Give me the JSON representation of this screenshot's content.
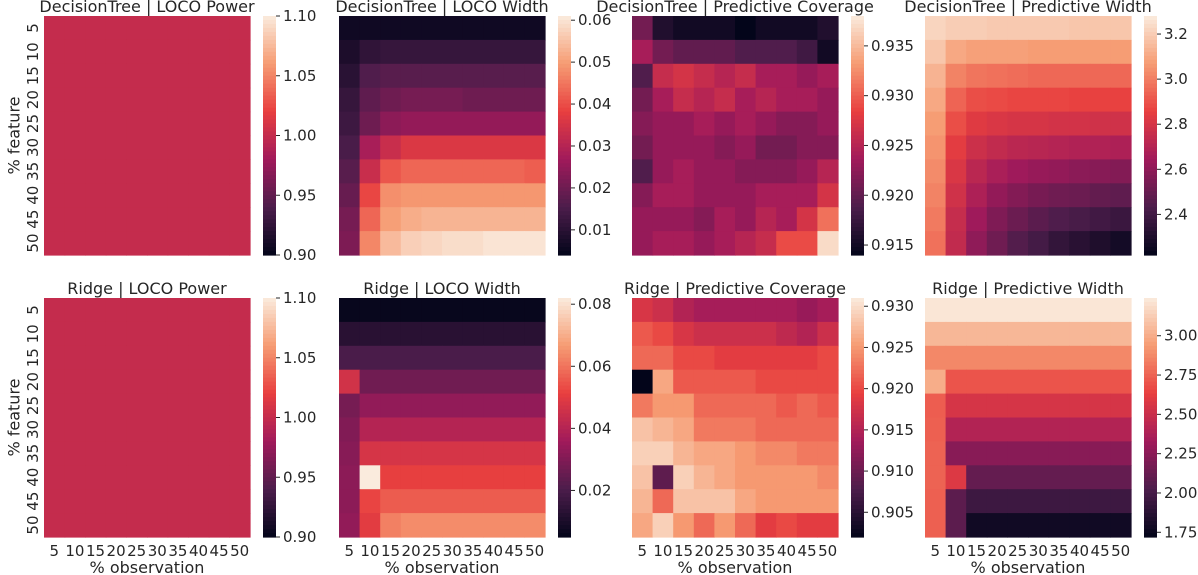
{
  "colormap": {
    "name": "rocket",
    "stops": [
      "#03051a",
      "#4c1d4b",
      "#a11a5b",
      "#e83f3f",
      "#f69c73",
      "#faebdd"
    ]
  },
  "shared_axes": {
    "xlabel": "% observation",
    "ylabel": "% feature",
    "categories": [
      "5",
      "10",
      "15",
      "20",
      "25",
      "30",
      "35",
      "40",
      "45",
      "50"
    ]
  },
  "chart_data": [
    {
      "type": "heatmap",
      "title": "DecisionTree | LOCO Power",
      "xlabel": "",
      "ylabel": "% feature",
      "x": [
        "5",
        "10",
        "15",
        "20",
        "25",
        "30",
        "35",
        "40",
        "45",
        "50"
      ],
      "y": [
        "5",
        "10",
        "15",
        "20",
        "25",
        "30",
        "35",
        "40",
        "45",
        "50"
      ],
      "vmin": 0.9,
      "vmax": 1.1,
      "colorbar_ticks": [
        "0.90",
        "0.95",
        "1.00",
        "1.05",
        "1.10"
      ],
      "constant_value": 1.0
    },
    {
      "type": "heatmap",
      "title": "DecisionTree | LOCO Width",
      "xlabel": "",
      "ylabel": "",
      "x": [
        "5",
        "10",
        "15",
        "20",
        "25",
        "30",
        "35",
        "40",
        "45",
        "50"
      ],
      "y": [
        "5",
        "10",
        "15",
        "20",
        "25",
        "30",
        "35",
        "40",
        "45",
        "50"
      ],
      "vmin": 0.004,
      "vmax": 0.061,
      "colorbar_ticks": [
        "0.01",
        "0.02",
        "0.03",
        "0.04",
        "0.05",
        "0.06"
      ],
      "values": [
        [
          0.006,
          0.006,
          0.006,
          0.006,
          0.006,
          0.006,
          0.006,
          0.006,
          0.006,
          0.006
        ],
        [
          0.008,
          0.011,
          0.012,
          0.012,
          0.012,
          0.012,
          0.012,
          0.012,
          0.012,
          0.012
        ],
        [
          0.01,
          0.016,
          0.017,
          0.017,
          0.017,
          0.017,
          0.017,
          0.017,
          0.017,
          0.017
        ],
        [
          0.012,
          0.018,
          0.02,
          0.021,
          0.021,
          0.021,
          0.02,
          0.02,
          0.02,
          0.02
        ],
        [
          0.013,
          0.02,
          0.024,
          0.025,
          0.025,
          0.025,
          0.025,
          0.025,
          0.025,
          0.025
        ],
        [
          0.015,
          0.028,
          0.033,
          0.036,
          0.036,
          0.036,
          0.036,
          0.036,
          0.036,
          0.036
        ],
        [
          0.017,
          0.033,
          0.041,
          0.043,
          0.043,
          0.043,
          0.043,
          0.043,
          0.043,
          0.042
        ],
        [
          0.019,
          0.039,
          0.048,
          0.049,
          0.049,
          0.049,
          0.049,
          0.049,
          0.049,
          0.049
        ],
        [
          0.021,
          0.043,
          0.05,
          0.052,
          0.053,
          0.053,
          0.053,
          0.053,
          0.053,
          0.053
        ],
        [
          0.022,
          0.047,
          0.054,
          0.057,
          0.058,
          0.059,
          0.059,
          0.06,
          0.06,
          0.06
        ]
      ]
    },
    {
      "type": "heatmap",
      "title": "DecisionTree | Predictive Coverage",
      "xlabel": "",
      "ylabel": "",
      "x": [
        "5",
        "10",
        "15",
        "20",
        "25",
        "30",
        "35",
        "40",
        "45",
        "50"
      ],
      "y": [
        "5",
        "10",
        "15",
        "20",
        "25",
        "30",
        "35",
        "40",
        "45",
        "50"
      ],
      "vmin": 0.914,
      "vmax": 0.938,
      "colorbar_ticks": [
        "0.915",
        "0.920",
        "0.925",
        "0.930",
        "0.935"
      ],
      "values": [
        [
          0.921,
          0.916,
          0.915,
          0.915,
          0.915,
          0.914,
          0.915,
          0.915,
          0.915,
          0.916
        ],
        [
          0.924,
          0.921,
          0.92,
          0.92,
          0.92,
          0.919,
          0.919,
          0.919,
          0.918,
          0.915
        ],
        [
          0.919,
          0.926,
          0.927,
          0.926,
          0.925,
          0.926,
          0.924,
          0.924,
          0.923,
          0.924
        ],
        [
          0.921,
          0.924,
          0.926,
          0.925,
          0.926,
          0.924,
          0.925,
          0.924,
          0.924,
          0.923
        ],
        [
          0.922,
          0.923,
          0.923,
          0.924,
          0.923,
          0.924,
          0.923,
          0.922,
          0.922,
          0.923
        ],
        [
          0.921,
          0.923,
          0.923,
          0.923,
          0.922,
          0.923,
          0.921,
          0.921,
          0.922,
          0.922
        ],
        [
          0.919,
          0.923,
          0.924,
          0.923,
          0.923,
          0.922,
          0.922,
          0.922,
          0.923,
          0.925
        ],
        [
          0.922,
          0.924,
          0.924,
          0.923,
          0.923,
          0.923,
          0.924,
          0.924,
          0.924,
          0.927
        ],
        [
          0.923,
          0.923,
          0.923,
          0.922,
          0.924,
          0.923,
          0.925,
          0.924,
          0.927,
          0.931
        ],
        [
          0.923,
          0.924,
          0.924,
          0.923,
          0.924,
          0.925,
          0.926,
          0.929,
          0.929,
          0.937
        ]
      ]
    },
    {
      "type": "heatmap",
      "title": "DecisionTree | Predictive Width",
      "xlabel": "",
      "ylabel": "",
      "x": [
        "5",
        "10",
        "15",
        "20",
        "25",
        "30",
        "35",
        "40",
        "45",
        "50"
      ],
      "y": [
        "5",
        "10",
        "15",
        "20",
        "25",
        "30",
        "35",
        "40",
        "45",
        "50"
      ],
      "vmin": 2.22,
      "vmax": 3.28,
      "colorbar_ticks": [
        "2.4",
        "2.6",
        "2.8",
        "3.0",
        "3.2"
      ],
      "values": [
        [
          3.22,
          3.2,
          3.2,
          3.19,
          3.19,
          3.19,
          3.19,
          3.18,
          3.18,
          3.18
        ],
        [
          3.18,
          3.1,
          3.08,
          3.08,
          3.08,
          3.07,
          3.07,
          3.07,
          3.07,
          3.07
        ],
        [
          3.13,
          3.01,
          2.98,
          2.97,
          2.96,
          2.95,
          2.95,
          2.95,
          2.95,
          2.95
        ],
        [
          3.1,
          2.94,
          2.89,
          2.88,
          2.87,
          2.87,
          2.87,
          2.86,
          2.86,
          2.86
        ],
        [
          3.07,
          2.89,
          2.83,
          2.81,
          2.8,
          2.8,
          2.79,
          2.79,
          2.78,
          2.78
        ],
        [
          3.05,
          2.84,
          2.77,
          2.74,
          2.72,
          2.71,
          2.7,
          2.69,
          2.69,
          2.68
        ],
        [
          3.03,
          2.81,
          2.72,
          2.67,
          2.64,
          2.62,
          2.61,
          2.59,
          2.58,
          2.57
        ],
        [
          3.01,
          2.78,
          2.68,
          2.61,
          2.57,
          2.54,
          2.52,
          2.51,
          2.49,
          2.48
        ],
        [
          2.99,
          2.75,
          2.64,
          2.56,
          2.51,
          2.47,
          2.44,
          2.42,
          2.4,
          2.38
        ],
        [
          2.97,
          2.74,
          2.6,
          2.52,
          2.45,
          2.41,
          2.36,
          2.33,
          2.3,
          2.27
        ]
      ]
    },
    {
      "type": "heatmap",
      "title": "Ridge | LOCO Power",
      "xlabel": "% observation",
      "ylabel": "% feature",
      "x": [
        "5",
        "10",
        "15",
        "20",
        "25",
        "30",
        "35",
        "40",
        "45",
        "50"
      ],
      "y": [
        "5",
        "10",
        "15",
        "20",
        "25",
        "30",
        "35",
        "40",
        "45",
        "50"
      ],
      "vmin": 0.9,
      "vmax": 1.1,
      "colorbar_ticks": [
        "0.90",
        "0.95",
        "1.00",
        "1.05",
        "1.10"
      ],
      "constant_value": 1.0
    },
    {
      "type": "heatmap",
      "title": "Ridge | LOCO Width",
      "xlabel": "% observation",
      "ylabel": "",
      "x": [
        "5",
        "10",
        "15",
        "20",
        "25",
        "30",
        "35",
        "40",
        "45",
        "50"
      ],
      "y": [
        "5",
        "10",
        "15",
        "20",
        "25",
        "30",
        "35",
        "40",
        "45",
        "50"
      ],
      "vmin": 0.005,
      "vmax": 0.082,
      "colorbar_ticks": [
        "0.02",
        "0.04",
        "0.06",
        "0.08"
      ],
      "values": [
        [
          0.006,
          0.006,
          0.006,
          0.006,
          0.006,
          0.006,
          0.006,
          0.006,
          0.006,
          0.006
        ],
        [
          0.013,
          0.013,
          0.013,
          0.013,
          0.013,
          0.013,
          0.013,
          0.013,
          0.013,
          0.013
        ],
        [
          0.02,
          0.02,
          0.02,
          0.02,
          0.02,
          0.02,
          0.02,
          0.02,
          0.02,
          0.02
        ],
        [
          0.046,
          0.027,
          0.027,
          0.027,
          0.027,
          0.027,
          0.027,
          0.027,
          0.027,
          0.027
        ],
        [
          0.028,
          0.033,
          0.033,
          0.033,
          0.033,
          0.033,
          0.033,
          0.033,
          0.033,
          0.033
        ],
        [
          0.03,
          0.04,
          0.04,
          0.04,
          0.04,
          0.04,
          0.04,
          0.04,
          0.04,
          0.04
        ],
        [
          0.031,
          0.047,
          0.047,
          0.047,
          0.047,
          0.047,
          0.047,
          0.047,
          0.047,
          0.047
        ],
        [
          0.032,
          0.082,
          0.051,
          0.051,
          0.051,
          0.051,
          0.051,
          0.051,
          0.051,
          0.051
        ],
        [
          0.032,
          0.052,
          0.056,
          0.056,
          0.056,
          0.056,
          0.056,
          0.056,
          0.056,
          0.056
        ],
        [
          0.033,
          0.05,
          0.062,
          0.064,
          0.064,
          0.064,
          0.064,
          0.064,
          0.064,
          0.064
        ]
      ]
    },
    {
      "type": "heatmap",
      "title": "Ridge | Predictive Coverage",
      "xlabel": "% observation",
      "ylabel": "",
      "x": [
        "5",
        "10",
        "15",
        "20",
        "25",
        "30",
        "35",
        "40",
        "45",
        "50"
      ],
      "y": [
        "5",
        "10",
        "15",
        "20",
        "25",
        "30",
        "35",
        "40",
        "45",
        "50"
      ],
      "vmin": 0.902,
      "vmax": 0.931,
      "colorbar_ticks": [
        "0.905",
        "0.910",
        "0.915",
        "0.920",
        "0.925",
        "0.930"
      ],
      "values": [
        [
          0.918,
          0.917,
          0.915,
          0.914,
          0.914,
          0.914,
          0.914,
          0.914,
          0.913,
          0.914
        ],
        [
          0.921,
          0.92,
          0.918,
          0.917,
          0.917,
          0.917,
          0.917,
          0.916,
          0.915,
          0.917
        ],
        [
          0.922,
          0.922,
          0.92,
          0.92,
          0.919,
          0.919,
          0.919,
          0.919,
          0.919,
          0.92
        ],
        [
          0.902,
          0.926,
          0.921,
          0.921,
          0.921,
          0.921,
          0.92,
          0.92,
          0.92,
          0.92
        ],
        [
          0.923,
          0.925,
          0.925,
          0.922,
          0.922,
          0.922,
          0.922,
          0.921,
          0.922,
          0.921
        ],
        [
          0.928,
          0.927,
          0.926,
          0.923,
          0.923,
          0.923,
          0.922,
          0.922,
          0.922,
          0.922
        ],
        [
          0.929,
          0.929,
          0.927,
          0.926,
          0.926,
          0.925,
          0.924,
          0.924,
          0.923,
          0.923
        ],
        [
          0.928,
          0.909,
          0.929,
          0.927,
          0.926,
          0.925,
          0.925,
          0.925,
          0.925,
          0.924
        ],
        [
          0.927,
          0.922,
          0.928,
          0.928,
          0.928,
          0.926,
          0.925,
          0.925,
          0.925,
          0.925
        ],
        [
          0.926,
          0.929,
          0.925,
          0.922,
          0.925,
          0.922,
          0.919,
          0.92,
          0.919,
          0.919
        ]
      ]
    },
    {
      "type": "heatmap",
      "title": "Ridge | Predictive Width",
      "xlabel": "% observation",
      "ylabel": "",
      "x": [
        "5",
        "10",
        "15",
        "20",
        "25",
        "30",
        "35",
        "40",
        "45",
        "50"
      ],
      "y": [
        "5",
        "10",
        "15",
        "20",
        "25",
        "30",
        "35",
        "40",
        "45",
        "50"
      ],
      "vmin": 1.72,
      "vmax": 3.24,
      "colorbar_ticks": [
        "1.75",
        "2.00",
        "2.25",
        "2.50",
        "2.75",
        "3.00"
      ],
      "values": [
        [
          3.22,
          3.22,
          3.22,
          3.22,
          3.22,
          3.22,
          3.22,
          3.22,
          3.22,
          3.22
        ],
        [
          3.04,
          3.04,
          3.04,
          3.04,
          3.04,
          3.04,
          3.04,
          3.04,
          3.04,
          3.04
        ],
        [
          2.87,
          2.87,
          2.87,
          2.87,
          2.87,
          2.87,
          2.87,
          2.87,
          2.87,
          2.87
        ],
        [
          3.0,
          2.7,
          2.7,
          2.7,
          2.7,
          2.7,
          2.7,
          2.7,
          2.7,
          2.7
        ],
        [
          2.73,
          2.55,
          2.55,
          2.55,
          2.55,
          2.55,
          2.55,
          2.55,
          2.55,
          2.55
        ],
        [
          2.74,
          2.4,
          2.4,
          2.4,
          2.4,
          2.4,
          2.4,
          2.4,
          2.4,
          2.4
        ],
        [
          2.75,
          2.24,
          2.24,
          2.24,
          2.24,
          2.24,
          2.24,
          2.24,
          2.24,
          2.24
        ],
        [
          2.75,
          2.58,
          2.11,
          2.11,
          2.11,
          2.11,
          2.11,
          2.11,
          2.11,
          2.11
        ],
        [
          2.74,
          2.08,
          1.96,
          1.96,
          1.96,
          1.96,
          1.96,
          1.96,
          1.96,
          1.96
        ],
        [
          2.74,
          2.08,
          1.78,
          1.78,
          1.78,
          1.78,
          1.78,
          1.78,
          1.78,
          1.78
        ]
      ]
    }
  ]
}
